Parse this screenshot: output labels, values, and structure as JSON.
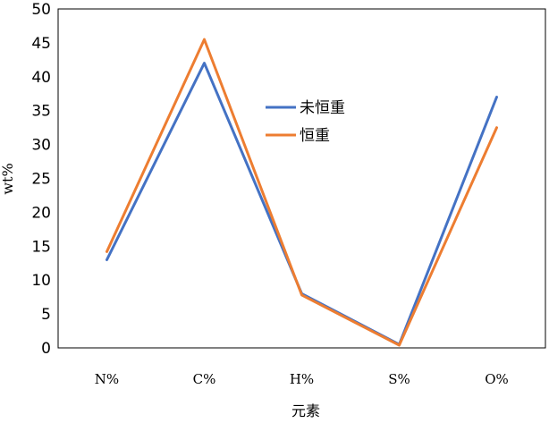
{
  "chart_data": {
    "type": "line",
    "title": "",
    "xlabel": "元素",
    "ylabel": "wt%",
    "categories": [
      "N%",
      "C%",
      "H%",
      "S%",
      "O%"
    ],
    "ylim": [
      0,
      50
    ],
    "yticks": [
      0,
      5,
      10,
      15,
      20,
      25,
      30,
      35,
      40,
      45,
      50
    ],
    "grid": false,
    "legend_position": "center-right",
    "series": [
      {
        "name": "未恒重",
        "color": "#4472C4",
        "values": [
          13,
          42,
          8,
          0.5,
          37
        ]
      },
      {
        "name": "恒重",
        "color": "#ED7D31",
        "values": [
          14.2,
          45.5,
          7.8,
          0.4,
          32.5
        ]
      }
    ]
  }
}
